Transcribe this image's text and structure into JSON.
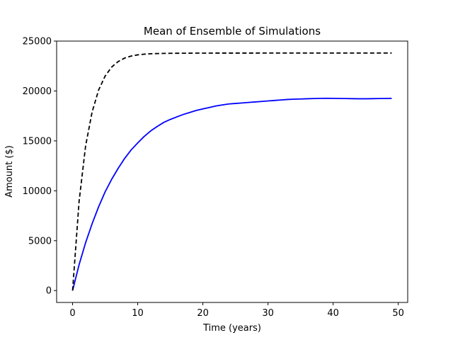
{
  "chart_data": {
    "type": "line",
    "title": "Mean of Ensemble of Simulations",
    "xlabel": "Time (years)",
    "ylabel": "Amount ($)",
    "xlim": [
      -2.45,
      51.45
    ],
    "ylim": [
      -1190,
      25000
    ],
    "xticks": [
      0,
      10,
      20,
      30,
      40,
      50
    ],
    "yticks": [
      0,
      5000,
      10000,
      15000,
      20000,
      25000
    ],
    "grid": false,
    "legend": "none",
    "series": [
      {
        "color": "#0000ff",
        "style": "solid",
        "x": [
          0,
          1,
          2,
          3,
          4,
          5,
          6,
          7,
          8,
          9,
          10,
          11,
          12,
          13,
          14,
          15,
          16,
          17,
          18,
          19,
          20,
          21,
          22,
          23,
          24,
          25,
          26,
          27,
          28,
          29,
          30,
          31,
          32,
          33,
          34,
          35,
          36,
          37,
          38,
          39,
          40,
          41,
          42,
          43,
          44,
          45,
          46,
          47,
          48,
          49
        ],
        "y": [
          0,
          2600,
          4800,
          6700,
          8400,
          9900,
          11150,
          12250,
          13250,
          14100,
          14800,
          15450,
          16000,
          16450,
          16850,
          17150,
          17400,
          17650,
          17850,
          18050,
          18200,
          18350,
          18500,
          18600,
          18700,
          18750,
          18800,
          18850,
          18900,
          18950,
          19000,
          19050,
          19100,
          19150,
          19180,
          19200,
          19220,
          19240,
          19260,
          19270,
          19260,
          19250,
          19240,
          19230,
          19220,
          19220,
          19230,
          19240,
          19250,
          19260
        ]
      },
      {
        "color": "#000000",
        "style": "dashed",
        "x": [
          0,
          1,
          2,
          3,
          4,
          5,
          6,
          7,
          8,
          9,
          10,
          11,
          12,
          13,
          14,
          15,
          16,
          17,
          18,
          19,
          20,
          21,
          22,
          23,
          24,
          25,
          26,
          27,
          28,
          29,
          30,
          31,
          32,
          33,
          34,
          35,
          36,
          37,
          38,
          39,
          40,
          41,
          42,
          43,
          44,
          45,
          46,
          47,
          48,
          49
        ],
        "y": [
          0,
          8950,
          14500,
          17900,
          20100,
          21500,
          22400,
          22950,
          23300,
          23500,
          23620,
          23690,
          23730,
          23750,
          23765,
          23775,
          23780,
          23785,
          23790,
          23792,
          23794,
          23795,
          23796,
          23797,
          23798,
          23798,
          23799,
          23799,
          23799,
          23800,
          23800,
          23800,
          23800,
          23800,
          23800,
          23800,
          23800,
          23800,
          23800,
          23800,
          23800,
          23800,
          23800,
          23800,
          23800,
          23800,
          23800,
          23800,
          23800,
          23800
        ]
      }
    ]
  }
}
